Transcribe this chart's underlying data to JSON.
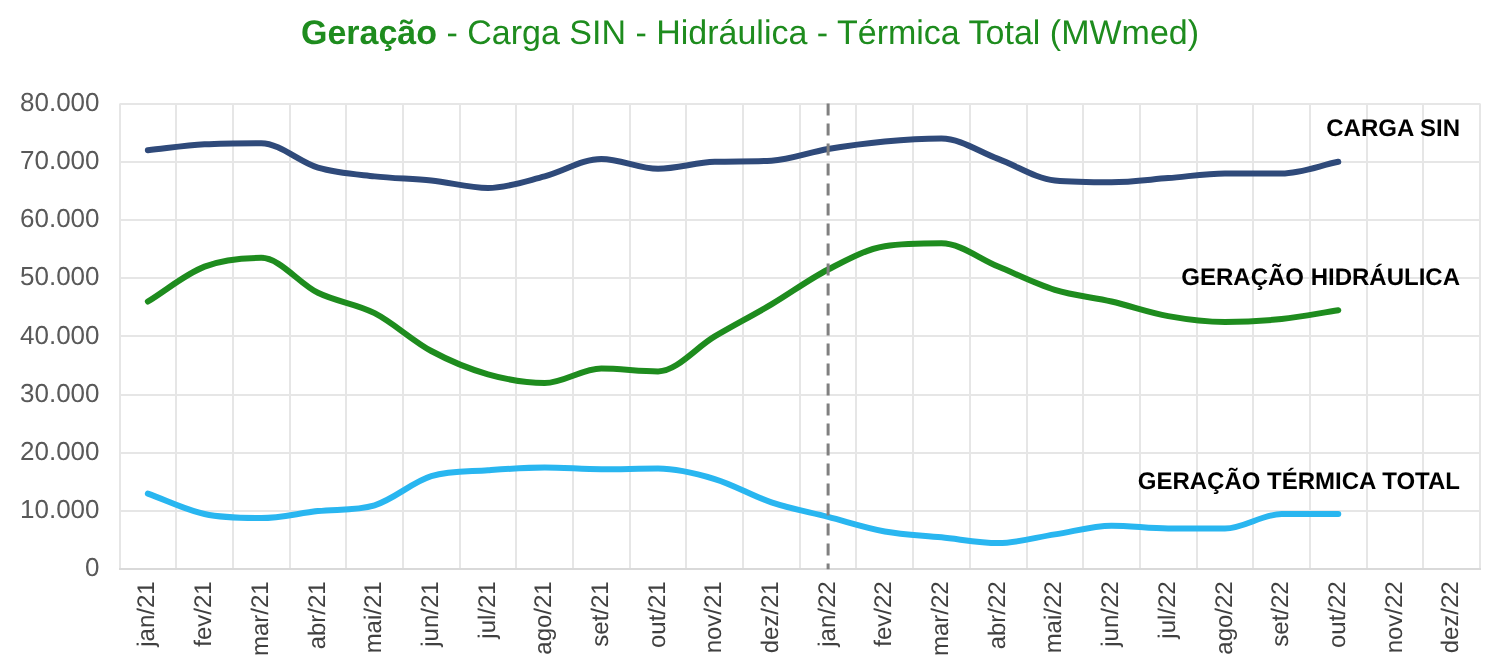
{
  "chart_data": {
    "type": "line",
    "title": "Geração - Carga SIN - Hidráulica - Térmica Total (MWmed)",
    "categories": [
      "jan/21",
      "fev/21",
      "mar/21",
      "abr/21",
      "mai/21",
      "jun/21",
      "jul/21",
      "ago/21",
      "set/21",
      "out/21",
      "nov/21",
      "dez/21",
      "jan/22",
      "fev/22",
      "mar/22",
      "abr/22",
      "mai/22",
      "jun/22",
      "jul/22",
      "ago/22",
      "set/22",
      "out/22",
      "nov/22",
      "dez/22"
    ],
    "series": [
      {
        "name": "CARGA SIN",
        "color": "#2f4a7a",
        "values": [
          72000,
          73000,
          73200,
          69000,
          67500,
          66800,
          65500,
          67500,
          70500,
          68800,
          70000,
          70200,
          72200,
          73500,
          74000,
          70500,
          66800,
          66500,
          67200,
          68000,
          68000,
          70000,
          null,
          null
        ]
      },
      {
        "name": "GERAÇÃO HIDRÁULICA",
        "color": "#1e8c1e",
        "values": [
          46000,
          52000,
          53500,
          47500,
          44000,
          37500,
          33500,
          32000,
          34500,
          34000,
          40000,
          45500,
          51500,
          55500,
          56000,
          52000,
          48000,
          46000,
          43500,
          42500,
          43000,
          44500,
          null,
          null
        ]
      },
      {
        "name": "GERAÇÃO TÉRMICA TOTAL",
        "color": "#29b6f0",
        "values": [
          13000,
          9500,
          8800,
          10000,
          11000,
          16000,
          17000,
          17500,
          17200,
          17300,
          15500,
          11500,
          9000,
          6500,
          5500,
          4500,
          6000,
          7500,
          7000,
          7000,
          9500,
          9500,
          null,
          null
        ]
      }
    ],
    "ylim": [
      0,
      80000
    ],
    "yticks": [
      0,
      {
        "value": 10000,
        "label": "10.000"
      },
      {
        "value": 20000,
        "label": "20.000"
      },
      {
        "value": 30000,
        "label": "30.000"
      },
      {
        "value": 40000,
        "label": "40.000"
      },
      {
        "value": 50000,
        "label": "50.000"
      },
      {
        "value": 60000,
        "label": "60.000"
      },
      {
        "value": 70000,
        "label": "70.000"
      },
      {
        "value": 80000,
        "label": "80.000"
      }
    ],
    "ref_lines": [
      {
        "axis": "x",
        "value": "jan/22",
        "color": "#808080",
        "line_style": "dashed"
      }
    ],
    "grid": true,
    "legend": false,
    "marker": "none",
    "line_style": "solid"
  }
}
